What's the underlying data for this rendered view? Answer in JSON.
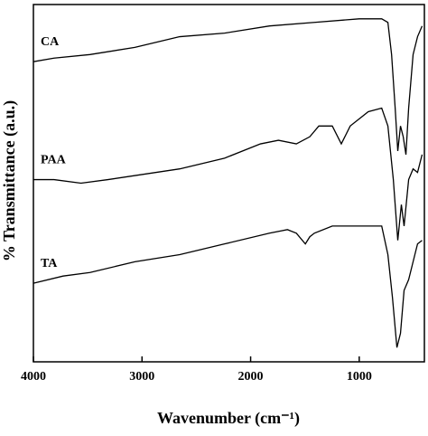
{
  "chart_data": {
    "type": "line",
    "xlabel": "Wavenumber (cm⁻¹)",
    "ylabel": "% Transmittance (a.u.)",
    "xlim": [
      4000,
      400
    ],
    "ylim": [
      0,
      100
    ],
    "xticks": [
      4000,
      3000,
      2000,
      1000
    ],
    "grid": false,
    "series": [
      {
        "name": "CA",
        "color": "#000000",
        "x": [
          4000,
          3810,
          3479,
          3066,
          2653,
          2240,
          1826,
          1413,
          1000,
          793,
          736,
          702,
          669,
          645,
          620,
          595,
          570,
          545,
          504,
          463,
          421
        ],
        "values": [
          84,
          85,
          86,
          88,
          91,
          92,
          94,
          95,
          96,
          96,
          95,
          86,
          71,
          59,
          66,
          63,
          58,
          71,
          86,
          91,
          94
        ]
      },
      {
        "name": "PAA",
        "color": "#000000",
        "x": [
          4000,
          3810,
          3562,
          3314,
          2653,
          2240,
          1909,
          1744,
          1579,
          1455,
          1372,
          1248,
          1165,
          1083,
          917,
          793,
          736,
          686,
          645,
          612,
          587,
          545,
          504,
          463,
          421
        ],
        "values": [
          51,
          51,
          50,
          51,
          54,
          57,
          61,
          62,
          61,
          63,
          66,
          66,
          61,
          66,
          70,
          71,
          66,
          51,
          34,
          44,
          38,
          51,
          54,
          53,
          58
        ]
      },
      {
        "name": "TA",
        "color": "#000000",
        "x": [
          4000,
          3727,
          3479,
          3066,
          2653,
          2240,
          1826,
          1661,
          1579,
          1496,
          1455,
          1413,
          1248,
          917,
          793,
          736,
          694,
          653,
          620,
          587,
          545,
          504,
          463,
          421
        ],
        "values": [
          22,
          24,
          25,
          28,
          30,
          33,
          36,
          37,
          36,
          33,
          35,
          36,
          38,
          38,
          38,
          30,
          18,
          4,
          8,
          20,
          23,
          28,
          33,
          34
        ]
      }
    ]
  }
}
